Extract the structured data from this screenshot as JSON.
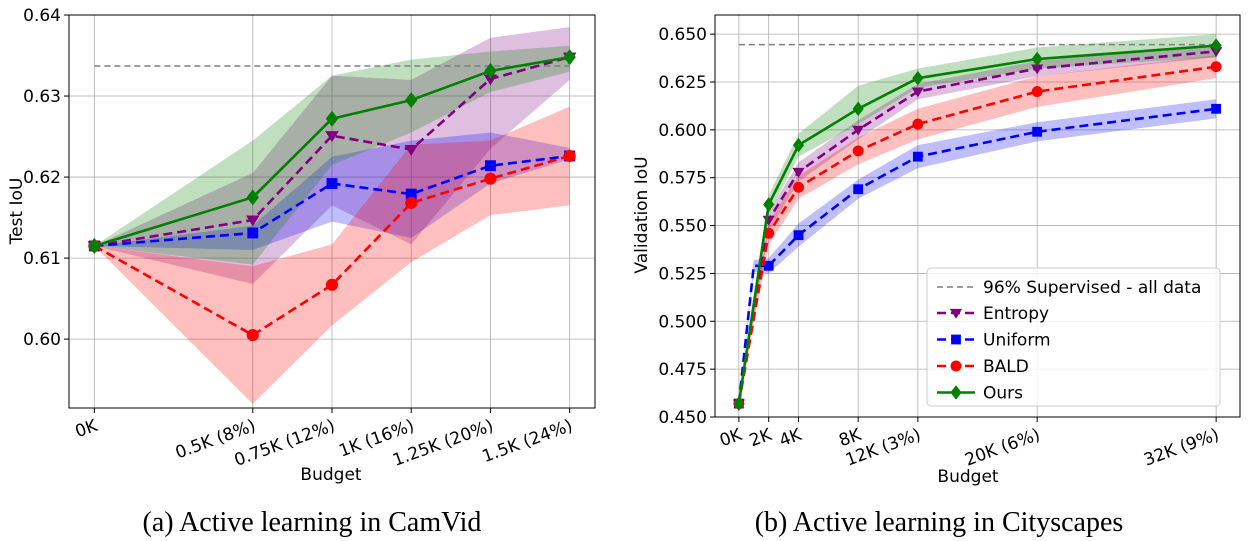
{
  "chart_data": [
    {
      "type": "line",
      "caption": "(a) Active learning in CamVid",
      "xlabel": "Budget",
      "ylabel": "Test IoU",
      "ylim": [
        0.5915,
        0.64
      ],
      "yticks": [
        0.6,
        0.61,
        0.62,
        0.63,
        0.64
      ],
      "ytick_labels": [
        "0.60",
        "0.61",
        "0.62",
        "0.63",
        "0.64"
      ],
      "categories": [
        "0K",
        "0.5K (8%)",
        "0.75K (12%)",
        "1K (16%)",
        "1.25K (20%)",
        "1.5K (24%)"
      ],
      "x": [
        0,
        0.5,
        0.75,
        1.0,
        1.25,
        1.5
      ],
      "xlim": [
        -0.08,
        1.58
      ],
      "grid": true,
      "legend": "none",
      "reference_line": {
        "name": "96% Supervised - all data",
        "value": 0.6337
      },
      "series": [
        {
          "name": "Entropy",
          "color": "#800080",
          "marker": "triangle-down",
          "dashed": true,
          "values": [
            0.6115,
            0.6147,
            0.6251,
            0.6234,
            0.6321,
            0.6348
          ],
          "lower": [
            0.6115,
            0.6068,
            0.6165,
            0.6117,
            0.6235,
            0.632
          ],
          "upper": [
            0.6115,
            0.6205,
            0.6325,
            0.632,
            0.6372,
            0.6385
          ]
        },
        {
          "name": "Uniform",
          "color": "#0000ff",
          "marker": "square",
          "dashed": true,
          "values": [
            0.6115,
            0.6131,
            0.6192,
            0.6179,
            0.6214,
            0.6226
          ],
          "lower": [
            0.6115,
            0.611,
            0.6145,
            0.6125,
            0.6192,
            0.6222
          ],
          "upper": [
            0.6115,
            0.614,
            0.6225,
            0.6245,
            0.6255,
            0.6236
          ]
        },
        {
          "name": "BALD",
          "color": "#ff0000",
          "marker": "circle",
          "dashed": true,
          "values": [
            0.6115,
            0.6005,
            0.6067,
            0.6168,
            0.6198,
            0.6226
          ],
          "lower": [
            0.6115,
            0.592,
            0.6017,
            0.6095,
            0.6153,
            0.6165
          ],
          "upper": [
            0.6115,
            0.609,
            0.6117,
            0.624,
            0.6245,
            0.6287
          ]
        },
        {
          "name": "Ours",
          "color": "#008000",
          "marker": "diamond",
          "dashed": false,
          "values": [
            0.6115,
            0.6175,
            0.6272,
            0.6295,
            0.6331,
            0.6348
          ],
          "lower": [
            0.6115,
            0.6092,
            0.6215,
            0.6255,
            0.6305,
            0.633
          ],
          "upper": [
            0.6115,
            0.6245,
            0.6325,
            0.6345,
            0.6355,
            0.6362
          ]
        }
      ]
    },
    {
      "type": "line",
      "caption": "(b) Active learning in Cityscapes",
      "xlabel": "Budget",
      "ylabel": "Validation IoU",
      "ylim": [
        0.45,
        0.66
      ],
      "yticks": [
        0.45,
        0.475,
        0.5,
        0.525,
        0.55,
        0.575,
        0.6,
        0.625,
        0.65
      ],
      "ytick_labels": [
        "0.450",
        "0.475",
        "0.500",
        "0.525",
        "0.550",
        "0.575",
        "0.600",
        "0.625",
        "0.650"
      ],
      "categories": [
        "0K",
        "2K",
        "4K",
        "8K",
        "12K (3%)",
        "20K (6%)",
        "32K (9%)"
      ],
      "x": [
        0,
        2,
        4,
        8,
        12,
        20,
        32
      ],
      "xlim": [
        -1.6,
        33.6
      ],
      "grid": true,
      "legend": "lower-right",
      "reference_line": {
        "name": "96% Supervised - all data",
        "value": 0.6445
      },
      "series": [
        {
          "name": "Entropy",
          "color": "#800080",
          "marker": "triangle-down",
          "dashed": true,
          "x": [
            0,
            2,
            4,
            8,
            12,
            20,
            32
          ],
          "values": [
            0.457,
            0.553,
            0.578,
            0.6,
            0.62,
            0.632,
            0.641
          ],
          "lower": [
            0.457,
            0.547,
            0.573,
            0.595,
            0.616,
            0.628,
            0.638
          ],
          "upper": [
            0.457,
            0.557,
            0.583,
            0.605,
            0.624,
            0.636,
            0.644
          ]
        },
        {
          "name": "Uniform",
          "color": "#0000ff",
          "marker": "square",
          "dashed": true,
          "x": [
            0,
            1,
            2,
            4,
            8,
            12,
            20,
            32
          ],
          "values": [
            0.457,
            0.529,
            0.529,
            0.545,
            0.569,
            0.586,
            0.599,
            0.611
          ],
          "lower": [
            0.457,
            0.526,
            0.525,
            0.539,
            0.564,
            0.58,
            0.594,
            0.606
          ],
          "upper": [
            0.457,
            0.532,
            0.533,
            0.551,
            0.574,
            0.592,
            0.604,
            0.616
          ]
        },
        {
          "name": "BALD",
          "color": "#ff0000",
          "marker": "circle",
          "dashed": true,
          "x": [
            0,
            2,
            4,
            8,
            12,
            20,
            32
          ],
          "values": [
            0.457,
            0.546,
            0.57,
            0.589,
            0.603,
            0.62,
            0.633
          ],
          "lower": [
            0.457,
            0.54,
            0.564,
            0.582,
            0.595,
            0.612,
            0.627
          ],
          "upper": [
            0.457,
            0.552,
            0.576,
            0.596,
            0.611,
            0.628,
            0.639
          ]
        },
        {
          "name": "Ours",
          "color": "#008000",
          "marker": "diamond",
          "dashed": false,
          "x": [
            0,
            2,
            4,
            8,
            12,
            20,
            32
          ],
          "values": [
            0.457,
            0.561,
            0.592,
            0.611,
            0.627,
            0.637,
            0.644
          ],
          "lower": [
            0.457,
            0.556,
            0.586,
            0.603,
            0.622,
            0.632,
            0.638
          ],
          "upper": [
            0.457,
            0.566,
            0.598,
            0.623,
            0.632,
            0.643,
            0.65
          ]
        }
      ]
    }
  ]
}
